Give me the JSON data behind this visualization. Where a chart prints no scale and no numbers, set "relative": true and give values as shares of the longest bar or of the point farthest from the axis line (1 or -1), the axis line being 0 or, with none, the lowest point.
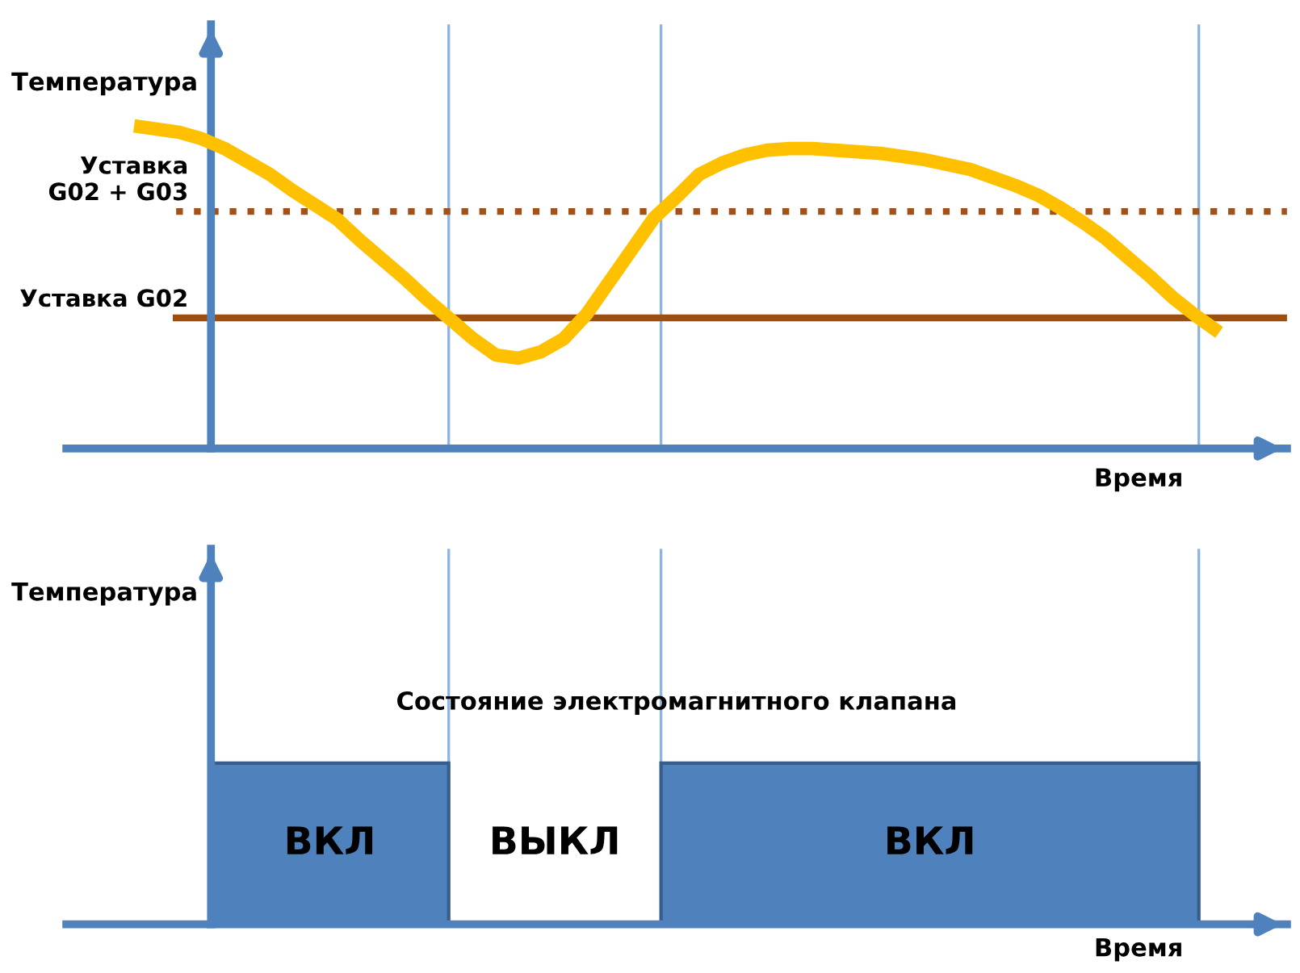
{
  "chart_data": [
    {
      "type": "line",
      "relative": true,
      "ylabel": "Температура",
      "xlabel": "Время",
      "grid": "x",
      "categories": [
        null,
        null,
        null,
        null,
        null,
        null,
        null,
        null,
        null,
        null,
        null,
        null,
        null,
        null,
        null,
        null,
        null,
        null,
        null,
        null,
        null,
        null,
        null,
        null,
        null,
        null,
        null,
        null,
        null,
        null,
        null,
        null,
        null,
        null,
        null,
        null,
        null,
        null,
        null,
        null,
        null,
        null,
        null,
        null,
        null,
        null,
        null,
        null,
        null
      ],
      "series": [
        {
          "color": "#ffc000",
          "values": [
            1.0,
            0.99,
            0.98,
            0.96,
            0.93,
            0.89,
            0.85,
            0.8,
            0.755,
            0.71,
            0.645,
            0.585,
            0.525,
            0.46,
            0.4,
            0.34,
            0.29,
            0.28,
            0.3,
            0.34,
            0.415,
            0.515,
            0.615,
            0.715,
            0.78,
            0.85,
            0.885,
            0.91,
            0.925,
            0.93,
            0.93,
            0.925,
            0.92,
            0.915,
            0.905,
            0.895,
            0.88,
            0.865,
            0.84,
            0.815,
            0.785,
            0.745,
            0.7,
            0.65,
            0.59,
            0.53,
            0.465,
            0.41,
            0.36
          ]
        }
      ],
      "ref_lines": [
        {
          "axis": "y",
          "value": 0.405,
          "label": "Уставка G02",
          "color": "#9c4f0f",
          "line_style": "solid"
        },
        {
          "axis": "y",
          "value": 0.735,
          "label": "Уставка\nG02 + G03",
          "color": "#a0521a",
          "line_style": "dotted"
        }
      ]
    },
    {
      "type": "other",
      "title": "Состояние электромагнитного клапана",
      "ylabel": "Температура",
      "xlabel": "Время",
      "annotations": [
        "ВКЛ",
        "ВЫКЛ",
        "ВКЛ"
      ]
    }
  ]
}
